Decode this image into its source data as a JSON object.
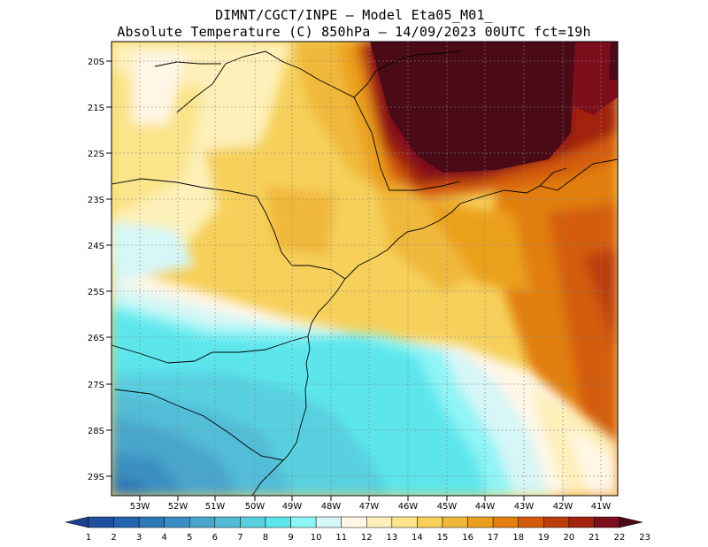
{
  "header": {
    "line1": "DIMNT/CGCT/INPE –  Model Eta05_M01_",
    "line2": "Absolute Temperature (C) 850hPa –  14/09/2023 00UTC fct=19h"
  },
  "map": {
    "lat_labels": [
      "20S",
      "21S",
      "22S",
      "23S",
      "24S",
      "25S",
      "26S",
      "27S",
      "28S",
      "29S"
    ],
    "lon_labels": [
      "53W",
      "52W",
      "51W",
      "50W",
      "49W",
      "48W",
      "47W",
      "46W",
      "45W",
      "44W",
      "43W",
      "42W",
      "41W"
    ],
    "extent": {
      "lon_min": -53.9,
      "lon_max": -40.3,
      "lat_min": -29.4,
      "lat_max": -19.8
    }
  },
  "colorbar": {
    "labels": [
      "1",
      "2",
      "3",
      "4",
      "5",
      "6",
      "7",
      "8",
      "9",
      "10",
      "11",
      "12",
      "13",
      "14",
      "15",
      "16",
      "17",
      "18",
      "19",
      "20",
      "21",
      "22",
      "23"
    ],
    "colors": [
      "#1f3f8f",
      "#21509f",
      "#2463ad",
      "#2d79b8",
      "#3a8fc2",
      "#48a5cc",
      "#52bcd6",
      "#58d0e0",
      "#5ce6ec",
      "#8ff4f6",
      "#d6f6f7",
      "#fff6e6",
      "#fdf0b8",
      "#fbe48a",
      "#f6d05a",
      "#f0b83a",
      "#eba01c",
      "#e27e0e",
      "#d35b0a",
      "#bb3d0a",
      "#a1230c",
      "#7d0e1c",
      "#4a0a16"
    ]
  }
}
